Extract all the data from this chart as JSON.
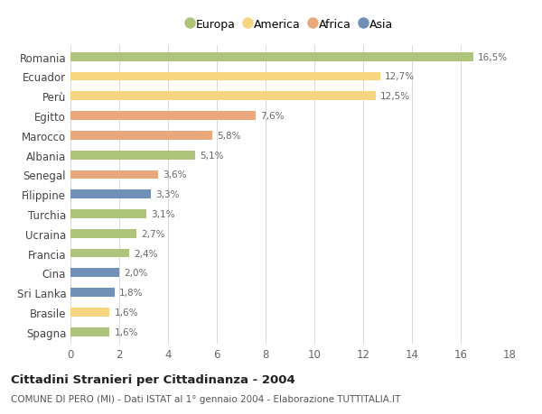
{
  "categories": [
    "Romania",
    "Ecuador",
    "Perù",
    "Egitto",
    "Marocco",
    "Albania",
    "Senegal",
    "Filippine",
    "Turchia",
    "Ucraina",
    "Francia",
    "Cina",
    "Sri Lanka",
    "Brasile",
    "Spagna"
  ],
  "values": [
    16.5,
    12.7,
    12.5,
    7.6,
    5.8,
    5.1,
    3.6,
    3.3,
    3.1,
    2.7,
    2.4,
    2.0,
    1.8,
    1.6,
    1.6
  ],
  "labels": [
    "16,5%",
    "12,7%",
    "12,5%",
    "7,6%",
    "5,8%",
    "5,1%",
    "3,6%",
    "3,3%",
    "3,1%",
    "2,7%",
    "2,4%",
    "2,0%",
    "1,8%",
    "1,6%",
    "1,6%"
  ],
  "colors": [
    "#adc47a",
    "#f7d580",
    "#f7d580",
    "#e8a87c",
    "#e8a87c",
    "#adc47a",
    "#e8a87c",
    "#7090b8",
    "#adc47a",
    "#adc47a",
    "#adc47a",
    "#7090b8",
    "#7090b8",
    "#f7d580",
    "#adc47a"
  ],
  "legend_labels": [
    "Europa",
    "America",
    "Africa",
    "Asia"
  ],
  "legend_colors": [
    "#adc47a",
    "#f7d580",
    "#e8a87c",
    "#7090b8"
  ],
  "title": "Cittadini Stranieri per Cittadinanza - 2004",
  "subtitle": "COMUNE DI PERO (MI) - Dati ISTAT al 1° gennaio 2004 - Elaborazione TUTTITALIA.IT",
  "xlim": [
    0,
    18
  ],
  "xticks": [
    0,
    2,
    4,
    6,
    8,
    10,
    12,
    14,
    16,
    18
  ],
  "background_color": "#ffffff",
  "grid_color": "#d8d8d8"
}
